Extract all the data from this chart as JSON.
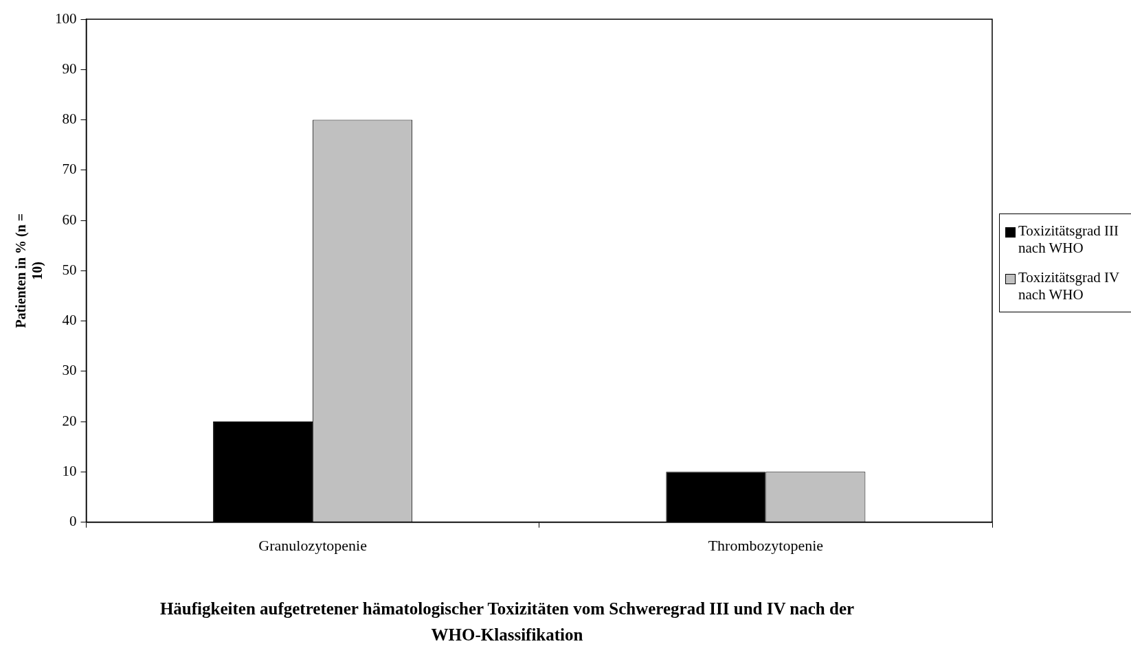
{
  "chart_data": {
    "type": "bar",
    "xlabel": "Häufigkeiten aufgetretener hämatologischer Toxizitäten vom Schweregrad III und IV nach der WHO-Klassifikation",
    "ylabel": "Patienten in % (n = 10)",
    "categories": [
      "Granulozytopenie",
      "Thrombozytopenie"
    ],
    "series": [
      {
        "name": "Toxizitätsgrad III nach WHO",
        "color": "#000000",
        "values": [
          20,
          10
        ]
      },
      {
        "name": "Toxizitätsgrad IV nach WHO",
        "color": "#c0c0c0",
        "values": [
          80,
          10
        ]
      }
    ],
    "ylim": [
      0,
      100
    ],
    "yticks": [
      0,
      10,
      20,
      30,
      40,
      50,
      60,
      70,
      80,
      90,
      100
    ],
    "grid": false,
    "legend": "right"
  }
}
